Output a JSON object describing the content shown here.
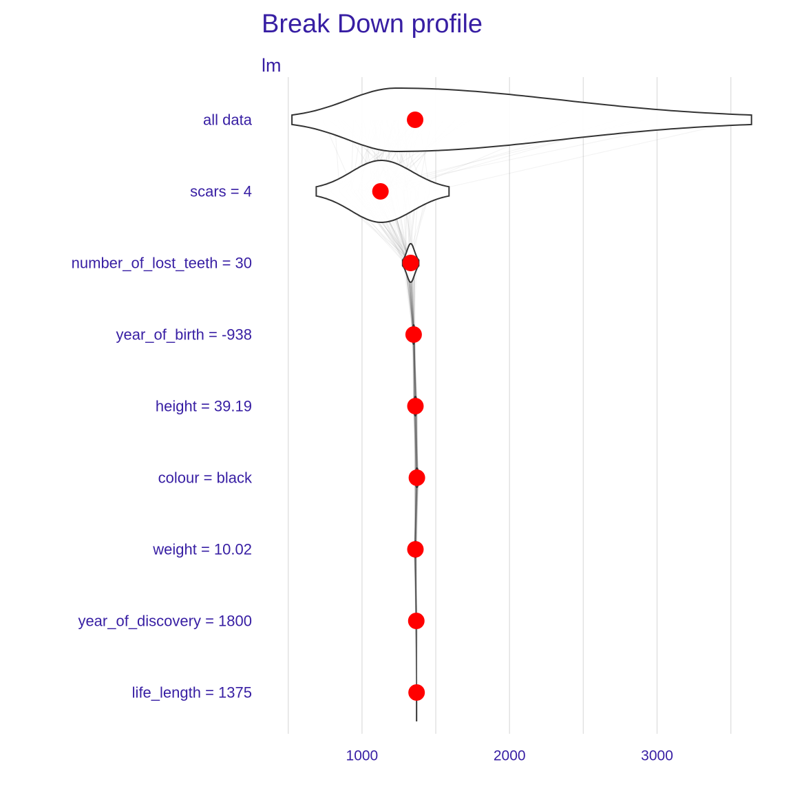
{
  "chart_data": {
    "type": "violin",
    "title": "Break Down profile",
    "subtitle": "lm",
    "xlabel": "",
    "ylabel": "",
    "xlim": [
      450,
      3660
    ],
    "x_ticks": [
      1000,
      2000,
      3000
    ],
    "x_tick_labels": [
      "1000",
      "2000",
      "3000"
    ],
    "grid": "vertical",
    "categories": [
      "all data",
      "scars = 4",
      "number_of_lost_teeth = 30",
      "year_of_birth = -938",
      "height = 39.19",
      "colour = black",
      "weight = 10.02",
      "year_of_discovery = 1800",
      "life_length = 1375"
    ],
    "points": [
      1360,
      1125,
      1330,
      1350,
      1362,
      1372,
      1362,
      1368,
      1370
    ],
    "violins": [
      {
        "min": 525,
        "max": 3640,
        "peak": 1230,
        "spread": 400
      },
      {
        "min": 690,
        "max": 1590,
        "peak": 1130,
        "spread": 300
      },
      {
        "min": 1275,
        "max": 1385,
        "peak": 1330,
        "spread": 40
      },
      {
        "min": 1335,
        "max": 1365,
        "peak": 1350,
        "spread": 10
      },
      {
        "min": 1340,
        "max": 1380,
        "peak": 1362,
        "spread": 12
      },
      {
        "min": 1350,
        "max": 1395,
        "peak": 1372,
        "spread": 12
      },
      {
        "min": 1350,
        "max": 1375,
        "peak": 1362,
        "spread": 8
      },
      {
        "min": 1360,
        "max": 1376,
        "peak": 1368,
        "spread": 5
      },
      {
        "min": 1365,
        "max": 1375,
        "peak": 1370,
        "spread": 3
      }
    ],
    "colors": {
      "text": "#371ea3",
      "point": "#ff0000",
      "violin_stroke": "#333333",
      "grid": "#e0e0e0",
      "paths": "#444444"
    }
  }
}
